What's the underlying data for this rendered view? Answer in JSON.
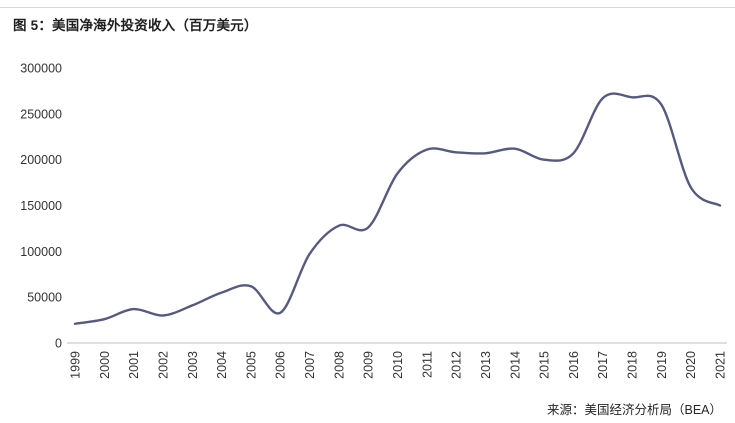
{
  "title": "图 5：美国净海外投资收入（百万美元）",
  "source": "来源：美国经济分析局（BEA）",
  "chart_data": {
    "type": "line",
    "title": "图 5：美国净海外投资收入（百万美元）",
    "x": [
      1999,
      2000,
      2001,
      2002,
      2003,
      2004,
      2005,
      2006,
      2007,
      2008,
      2009,
      2010,
      2011,
      2012,
      2013,
      2014,
      2015,
      2016,
      2017,
      2018,
      2019,
      2020,
      2021
    ],
    "series": [
      {
        "name": "美国净海外投资收入（百万美元）",
        "values": [
          21000,
          26000,
          37000,
          30000,
          41000,
          55000,
          62000,
          33000,
          97000,
          128000,
          126000,
          185000,
          211000,
          208000,
          207000,
          212000,
          200000,
          207000,
          267000,
          268000,
          260000,
          170000,
          150000
        ]
      }
    ],
    "ylim": [
      0,
      300000
    ],
    "ytick_interval": 50000,
    "yticks": [
      "0",
      "50000",
      "100000",
      "150000",
      "200000",
      "250000",
      "300000"
    ],
    "xlabel": "",
    "ylabel": "",
    "grid": false,
    "legend_position": "none",
    "smooth": true,
    "line_color": "#565a7e",
    "axis_color": "#bfbfbf",
    "tick_text_color": "#333333"
  }
}
